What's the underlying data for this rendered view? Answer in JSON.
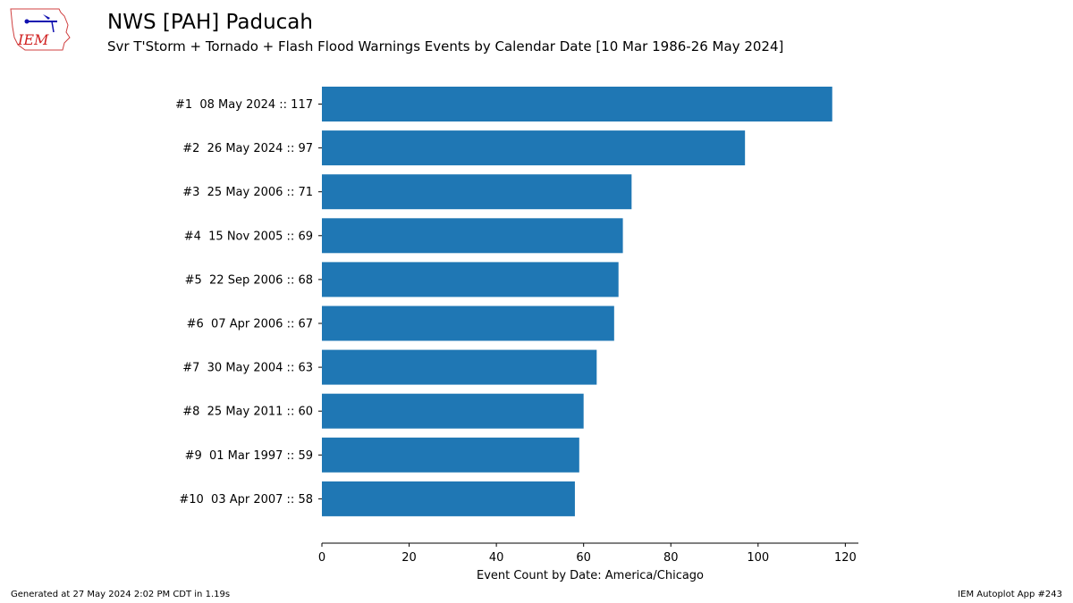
{
  "header": {
    "title": "NWS [PAH] Paducah",
    "subtitle": "Svr T'Storm + Tornado + Flash Flood Warnings Events by Calendar Date [10 Mar 1986-26 May 2024]",
    "logo_text": "IEM"
  },
  "footer": {
    "generated": "Generated at 27 May 2024 2:02 PM CDT in 1.19s",
    "app": "IEM Autoplot App #243"
  },
  "chart_data": {
    "type": "bar",
    "orientation": "horizontal",
    "categories": [
      "#1  08 May 2024 :: 117",
      "#2  26 May 2024 :: 97",
      "#3  25 May 2006 :: 71",
      "#4  15 Nov 2005 :: 69",
      "#5  22 Sep 2006 :: 68",
      "#6  07 Apr 2006 :: 67",
      "#7  30 May 2004 :: 63",
      "#8  25 May 2011 :: 60",
      "#9  01 Mar 1997 :: 59",
      "#10  03 Apr 2007 :: 58"
    ],
    "values": [
      117,
      97,
      71,
      69,
      68,
      67,
      63,
      60,
      59,
      58
    ],
    "xlabel": "Event Count by Date: America/Chicago",
    "xlim": [
      0,
      123
    ],
    "xticks": [
      0,
      20,
      40,
      60,
      80,
      100,
      120
    ],
    "bar_color": "#1f77b4",
    "grid": false
  }
}
